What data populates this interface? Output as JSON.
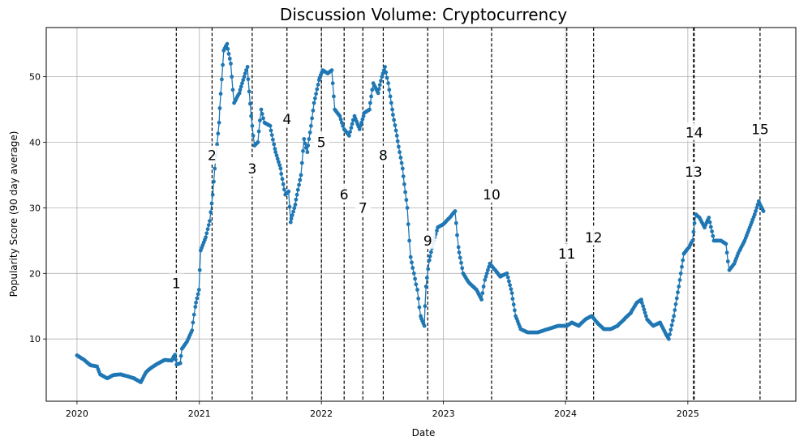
{
  "chart_data": {
    "type": "line",
    "title": "Discussion Volume: Cryptocurrency",
    "xlabel": "Date",
    "ylabel": "Popularity Score (90 day average)",
    "xlim": [
      "2019-10-01",
      "2025-11-20"
    ],
    "ylim": [
      0.5,
      57.5
    ],
    "x_ticks": [
      "2020",
      "2021",
      "2022",
      "2023",
      "2024",
      "2025"
    ],
    "y_ticks": [
      10,
      20,
      30,
      40,
      50
    ],
    "grid": true,
    "series": [
      {
        "color": "#1f77b4",
        "points": [
          [
            "2020-01-01",
            7.5
          ],
          [
            "2020-01-20",
            6.9
          ],
          [
            "2020-02-10",
            6.0
          ],
          [
            "2020-03-01",
            5.8
          ],
          [
            "2020-03-10",
            4.6
          ],
          [
            "2020-04-01",
            4.0
          ],
          [
            "2020-04-20",
            4.5
          ],
          [
            "2020-05-10",
            4.6
          ],
          [
            "2020-06-01",
            4.3
          ],
          [
            "2020-06-20",
            4.0
          ],
          [
            "2020-07-10",
            3.4
          ],
          [
            "2020-07-25",
            4.9
          ],
          [
            "2020-08-10",
            5.6
          ],
          [
            "2020-09-01",
            6.3
          ],
          [
            "2020-09-20",
            6.8
          ],
          [
            "2020-10-10",
            6.7
          ],
          [
            "2020-10-20",
            7.6
          ],
          [
            "2020-10-25",
            6.1
          ],
          [
            "2020-11-05",
            6.3
          ],
          [
            "2020-11-10",
            8.5
          ],
          [
            "2020-11-25",
            9.6
          ],
          [
            "2020-12-10",
            11.3
          ],
          [
            "2020-12-20",
            14.9
          ],
          [
            "2020-12-31",
            17.5
          ],
          [
            "2021-01-05",
            23.5
          ],
          [
            "2021-01-20",
            25.5
          ],
          [
            "2021-02-01",
            28.0
          ],
          [
            "2021-02-10",
            32.0
          ],
          [
            "2021-02-20",
            38.0
          ],
          [
            "2021-03-01",
            43.0
          ],
          [
            "2021-03-15",
            54.0
          ],
          [
            "2021-03-25",
            55.0
          ],
          [
            "2021-04-05",
            52.0
          ],
          [
            "2021-04-15",
            46.0
          ],
          [
            "2021-05-01",
            47.5
          ],
          [
            "2021-05-15",
            50.0
          ],
          [
            "2021-05-25",
            51.5
          ],
          [
            "2021-06-05",
            44.0
          ],
          [
            "2021-06-15",
            39.5
          ],
          [
            "2021-06-25",
            40.0
          ],
          [
            "2021-07-05",
            45.0
          ],
          [
            "2021-07-15",
            43.0
          ],
          [
            "2021-08-01",
            42.5
          ],
          [
            "2021-08-15",
            39.0
          ],
          [
            "2021-09-01",
            36.0
          ],
          [
            "2021-09-15",
            32.0
          ],
          [
            "2021-09-25",
            32.5
          ],
          [
            "2021-10-01",
            27.8
          ],
          [
            "2021-10-15",
            30.5
          ],
          [
            "2021-11-01",
            35.0
          ],
          [
            "2021-11-10",
            40.5
          ],
          [
            "2021-11-20",
            38.5
          ],
          [
            "2021-12-01",
            42.5
          ],
          [
            "2021-12-10",
            46.0
          ],
          [
            "2021-12-25",
            49.5
          ],
          [
            "2022-01-05",
            51.0
          ],
          [
            "2022-01-20",
            50.5
          ],
          [
            "2022-02-01",
            51.0
          ],
          [
            "2022-02-10",
            45.0
          ],
          [
            "2022-02-25",
            44.0
          ],
          [
            "2022-03-10",
            42.0
          ],
          [
            "2022-03-25",
            41.0
          ],
          [
            "2022-04-10",
            44.0
          ],
          [
            "2022-04-25",
            42.0
          ],
          [
            "2022-05-10",
            44.5
          ],
          [
            "2022-05-25",
            45.0
          ],
          [
            "2022-06-05",
            49.0
          ],
          [
            "2022-06-20",
            47.5
          ],
          [
            "2022-07-01",
            50.0
          ],
          [
            "2022-07-10",
            51.5
          ],
          [
            "2022-07-20",
            49.0
          ],
          [
            "2022-08-01",
            45.0
          ],
          [
            "2022-08-15",
            41.0
          ],
          [
            "2022-09-01",
            36.0
          ],
          [
            "2022-09-15",
            30.0
          ],
          [
            "2022-09-25",
            22.5
          ],
          [
            "2022-10-05",
            20.0
          ],
          [
            "2022-10-15",
            17.5
          ],
          [
            "2022-10-25",
            13.5
          ],
          [
            "2022-11-05",
            12.0
          ],
          [
            "2022-11-10",
            18.0
          ],
          [
            "2022-11-20",
            22.0
          ],
          [
            "2022-12-01",
            24.5
          ],
          [
            "2022-12-15",
            27.0
          ],
          [
            "2023-01-01",
            27.5
          ],
          [
            "2023-01-20",
            28.5
          ],
          [
            "2023-02-05",
            29.5
          ],
          [
            "2023-02-15",
            24.0
          ],
          [
            "2023-03-01",
            20.0
          ],
          [
            "2023-03-20",
            18.5
          ],
          [
            "2023-04-10",
            17.5
          ],
          [
            "2023-04-25",
            16.0
          ],
          [
            "2023-05-05",
            19.0
          ],
          [
            "2023-05-20",
            21.5
          ],
          [
            "2023-06-05",
            20.5
          ],
          [
            "2023-06-20",
            19.5
          ],
          [
            "2023-07-10",
            20.0
          ],
          [
            "2023-07-25",
            17.0
          ],
          [
            "2023-08-05",
            13.5
          ],
          [
            "2023-08-20",
            11.5
          ],
          [
            "2023-09-10",
            11.0
          ],
          [
            "2023-10-10",
            11.0
          ],
          [
            "2023-11-10",
            11.5
          ],
          [
            "2023-12-10",
            12.0
          ],
          [
            "2024-01-05",
            12.0
          ],
          [
            "2024-01-20",
            12.5
          ],
          [
            "2024-02-10",
            12.0
          ],
          [
            "2024-03-01",
            13.0
          ],
          [
            "2024-03-20",
            13.5
          ],
          [
            "2024-04-05",
            12.5
          ],
          [
            "2024-04-25",
            11.5
          ],
          [
            "2024-05-15",
            11.5
          ],
          [
            "2024-06-05",
            12.0
          ],
          [
            "2024-06-25",
            13.0
          ],
          [
            "2024-07-15",
            14.0
          ],
          [
            "2024-08-01",
            15.5
          ],
          [
            "2024-08-15",
            16.0
          ],
          [
            "2024-09-01",
            13.0
          ],
          [
            "2024-09-20",
            12.0
          ],
          [
            "2024-10-10",
            12.5
          ],
          [
            "2024-10-25",
            11.0
          ],
          [
            "2024-11-05",
            10.0
          ],
          [
            "2024-11-20",
            13.5
          ],
          [
            "2024-12-05",
            18.0
          ],
          [
            "2024-12-20",
            23.0
          ],
          [
            "2025-01-05",
            24.0
          ],
          [
            "2025-01-15",
            25.0
          ],
          [
            "2025-01-25",
            29.0
          ],
          [
            "2025-02-05",
            28.5
          ],
          [
            "2025-02-20",
            27.0
          ],
          [
            "2025-03-05",
            28.5
          ],
          [
            "2025-03-20",
            25.0
          ],
          [
            "2025-04-10",
            25.0
          ],
          [
            "2025-04-25",
            24.5
          ],
          [
            "2025-05-05",
            20.5
          ],
          [
            "2025-05-20",
            21.5
          ],
          [
            "2025-06-05",
            23.5
          ],
          [
            "2025-06-20",
            25.0
          ],
          [
            "2025-07-05",
            27.0
          ],
          [
            "2025-07-20",
            29.0
          ],
          [
            "2025-08-01",
            31.0
          ],
          [
            "2025-08-15",
            29.5
          ]
        ]
      }
    ],
    "events": [
      {
        "label": "1",
        "date": "2020-10-24",
        "label_y": 18.5
      },
      {
        "label": "2",
        "date": "2021-02-08",
        "label_y": 38.0
      },
      {
        "label": "3",
        "date": "2021-06-08",
        "label_y": 36.0
      },
      {
        "label": "4",
        "date": "2021-09-20",
        "label_y": 43.5
      },
      {
        "label": "5",
        "date": "2022-01-01",
        "label_y": 40.0
      },
      {
        "label": "6",
        "date": "2022-03-10",
        "label_y": 32.0
      },
      {
        "label": "7",
        "date": "2022-05-05",
        "label_y": 30.0
      },
      {
        "label": "8",
        "date": "2022-07-05",
        "label_y": 38.0
      },
      {
        "label": "9",
        "date": "2022-11-15",
        "label_y": 25.0
      },
      {
        "label": "10",
        "date": "2023-05-25",
        "label_y": 32.0
      },
      {
        "label": "11",
        "date": "2024-01-05",
        "label_y": 23.0
      },
      {
        "label": "12",
        "date": "2024-03-25",
        "label_y": 25.5
      },
      {
        "label": "13",
        "date": "2025-01-18",
        "label_y": 35.5
      },
      {
        "label": "14",
        "date": "2025-01-20",
        "label_y": 41.5
      },
      {
        "label": "15",
        "date": "2025-08-05",
        "label_y": 42.0
      }
    ]
  }
}
